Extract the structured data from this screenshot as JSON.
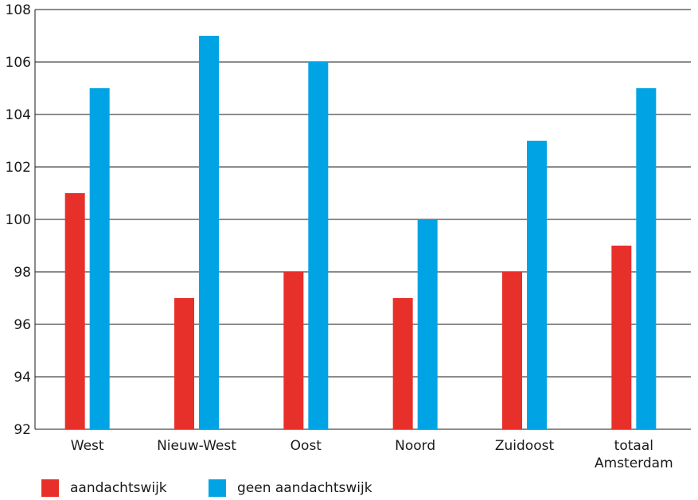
{
  "chart_data": {
    "type": "bar",
    "categories": [
      "West",
      "Nieuw-West",
      "Oost",
      "Noord",
      "Zuidoost",
      "totaal Amsterdam"
    ],
    "category_lines": [
      [
        "West"
      ],
      [
        "Nieuw-West"
      ],
      [
        "Oost"
      ],
      [
        "Noord"
      ],
      [
        "Zuidoost"
      ],
      [
        "totaal",
        "Amsterdam"
      ]
    ],
    "series": [
      {
        "name": "aandachtswijk",
        "color": "#e8302b",
        "values": [
          101,
          97,
          98,
          97,
          98,
          99
        ]
      },
      {
        "name": "geen aandachtswijk",
        "color": "#00a4e4",
        "values": [
          105,
          107,
          106,
          100,
          103,
          105
        ]
      }
    ],
    "ylim": [
      92,
      108
    ],
    "yticks": [
      "92",
      "94",
      "96",
      "98",
      "100",
      "102",
      "104",
      "106",
      "108"
    ],
    "xlabel": "",
    "ylabel": "",
    "title": "",
    "grid": true,
    "legend_position": "bottom-left"
  }
}
